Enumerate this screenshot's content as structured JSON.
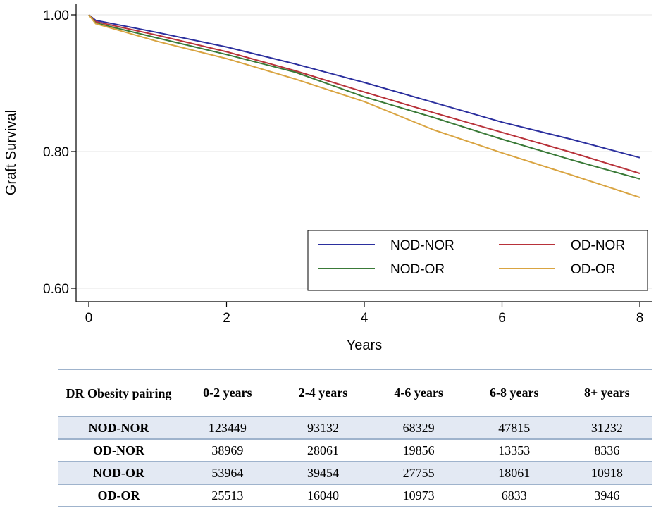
{
  "chart_data": {
    "type": "line",
    "title": "",
    "xlabel": "Years",
    "ylabel": "Graft Survival",
    "xlim": [
      0,
      8
    ],
    "ylim": [
      0.6,
      1.0
    ],
    "xticks": [
      "0",
      "2",
      "4",
      "6",
      "8"
    ],
    "yticks": [
      "0.60",
      "0.80",
      "1.00"
    ],
    "grid": "horizontal",
    "legend_position": "bottom-right",
    "series": [
      {
        "name": "NOD-NOR",
        "color": "#2b2f9e",
        "x": [
          0,
          0.1,
          1,
          2,
          3,
          4,
          5,
          6,
          7,
          8
        ],
        "y": [
          1.0,
          0.992,
          0.974,
          0.953,
          0.928,
          0.901,
          0.872,
          0.843,
          0.818,
          0.791
        ]
      },
      {
        "name": "OD-NOR",
        "color": "#b8323a",
        "x": [
          0,
          0.1,
          1,
          2,
          3,
          4,
          5,
          6,
          7,
          8
        ],
        "y": [
          1.0,
          0.99,
          0.97,
          0.946,
          0.918,
          0.887,
          0.857,
          0.828,
          0.799,
          0.768
        ]
      },
      {
        "name": "NOD-OR",
        "color": "#3a7a38",
        "x": [
          0,
          0.1,
          1,
          2,
          3,
          4,
          5,
          6,
          7,
          8
        ],
        "y": [
          1.0,
          0.988,
          0.966,
          0.942,
          0.916,
          0.88,
          0.85,
          0.818,
          0.788,
          0.76
        ]
      },
      {
        "name": "OD-OR",
        "color": "#d9a441",
        "x": [
          0,
          0.1,
          1,
          2,
          3,
          4,
          5,
          6,
          7,
          8
        ],
        "y": [
          1.0,
          0.987,
          0.961,
          0.936,
          0.906,
          0.873,
          0.832,
          0.798,
          0.766,
          0.733
        ]
      }
    ]
  },
  "table": {
    "header": [
      "DR Obesity pairing",
      "0-2 years",
      "2-4 years",
      "4-6 years",
      "6-8 years",
      "8+ years"
    ],
    "rows": [
      [
        "NOD-NOR",
        "123449",
        "93132",
        "68329",
        "47815",
        "31232"
      ],
      [
        "OD-NOR",
        "38969",
        "28061",
        "19856",
        "13353",
        "8336"
      ],
      [
        "NOD-OR",
        "53964",
        "39454",
        "27755",
        "18061",
        "10918"
      ],
      [
        "OD-OR",
        "25513",
        "16040",
        "10973",
        "6833",
        "3946"
      ]
    ]
  }
}
